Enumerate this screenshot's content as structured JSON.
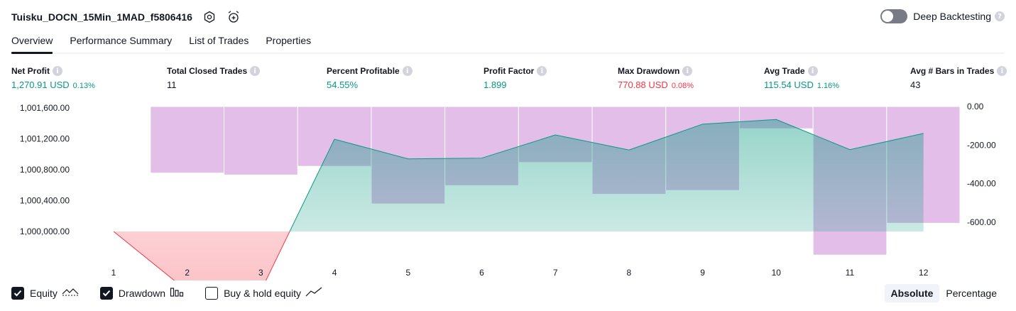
{
  "header": {
    "title": "Tuisku_DOCN_15Min_1MAD_f5806416"
  },
  "deep_backtesting": {
    "label": "Deep Backtesting",
    "enabled": false
  },
  "tabs": [
    {
      "label": "Overview",
      "active": true
    },
    {
      "label": "Performance Summary",
      "active": false
    },
    {
      "label": "List of Trades",
      "active": false
    },
    {
      "label": "Properties",
      "active": false
    }
  ],
  "metrics": {
    "net_profit": {
      "label": "Net Profit",
      "value": "1,270.91 USD",
      "pct": "0.13%"
    },
    "total_closed_trades": {
      "label": "Total Closed Trades",
      "value": "11"
    },
    "percent_profitable": {
      "label": "Percent Profitable",
      "value": "54.55%"
    },
    "profit_factor": {
      "label": "Profit Factor",
      "value": "1.899"
    },
    "max_drawdown": {
      "label": "Max Drawdown",
      "value": "770.88 USD",
      "pct": "0.08%"
    },
    "avg_trade": {
      "label": "Avg Trade",
      "value": "115.54 USD",
      "pct": "1.16%"
    },
    "avg_bars": {
      "label": "Avg # Bars in Trades",
      "value": "43"
    }
  },
  "chart_data": {
    "type": "line",
    "x": [
      1,
      2,
      3,
      4,
      5,
      6,
      7,
      8,
      9,
      10,
      11,
      12
    ],
    "series": [
      {
        "name": "Equity",
        "axis": "left",
        "values": [
          1000000,
          999230,
          999230,
          1001195,
          1000940,
          1000950,
          1001250,
          1001055,
          1001390,
          1001450,
          1001060,
          1001270
        ]
      },
      {
        "name": "Drawdown",
        "axis": "right",
        "type": "bar",
        "values": [
          0,
          -345,
          -355,
          -310,
          -505,
          -410,
          -290,
          -455,
          -435,
          -115,
          -770,
          -605
        ]
      }
    ],
    "left_ticks": [
      "1,001,600.00",
      "1,001,200.00",
      "1,000,800.00",
      "1,000,400.00",
      "1,000,000.00"
    ],
    "left_tick_values": [
      1001600,
      1001200,
      1000800,
      1000400,
      1000000
    ],
    "right_ticks": [
      "0.00",
      "-200.00",
      "-400.00",
      "-600.00"
    ],
    "right_tick_values": [
      0,
      -200,
      -400,
      -600
    ],
    "baseline": 1000000,
    "colors": {
      "positive": "#089981",
      "negative": "#f23645",
      "drawdown": "#ce93d8"
    }
  },
  "legend": {
    "equity": {
      "label": "Equity",
      "checked": true
    },
    "drawdown": {
      "label": "Drawdown",
      "checked": true
    },
    "buy_hold": {
      "label": "Buy & hold equity",
      "checked": false
    }
  },
  "view_switch": {
    "absolute": "Absolute",
    "percentage": "Percentage",
    "active": "absolute"
  }
}
